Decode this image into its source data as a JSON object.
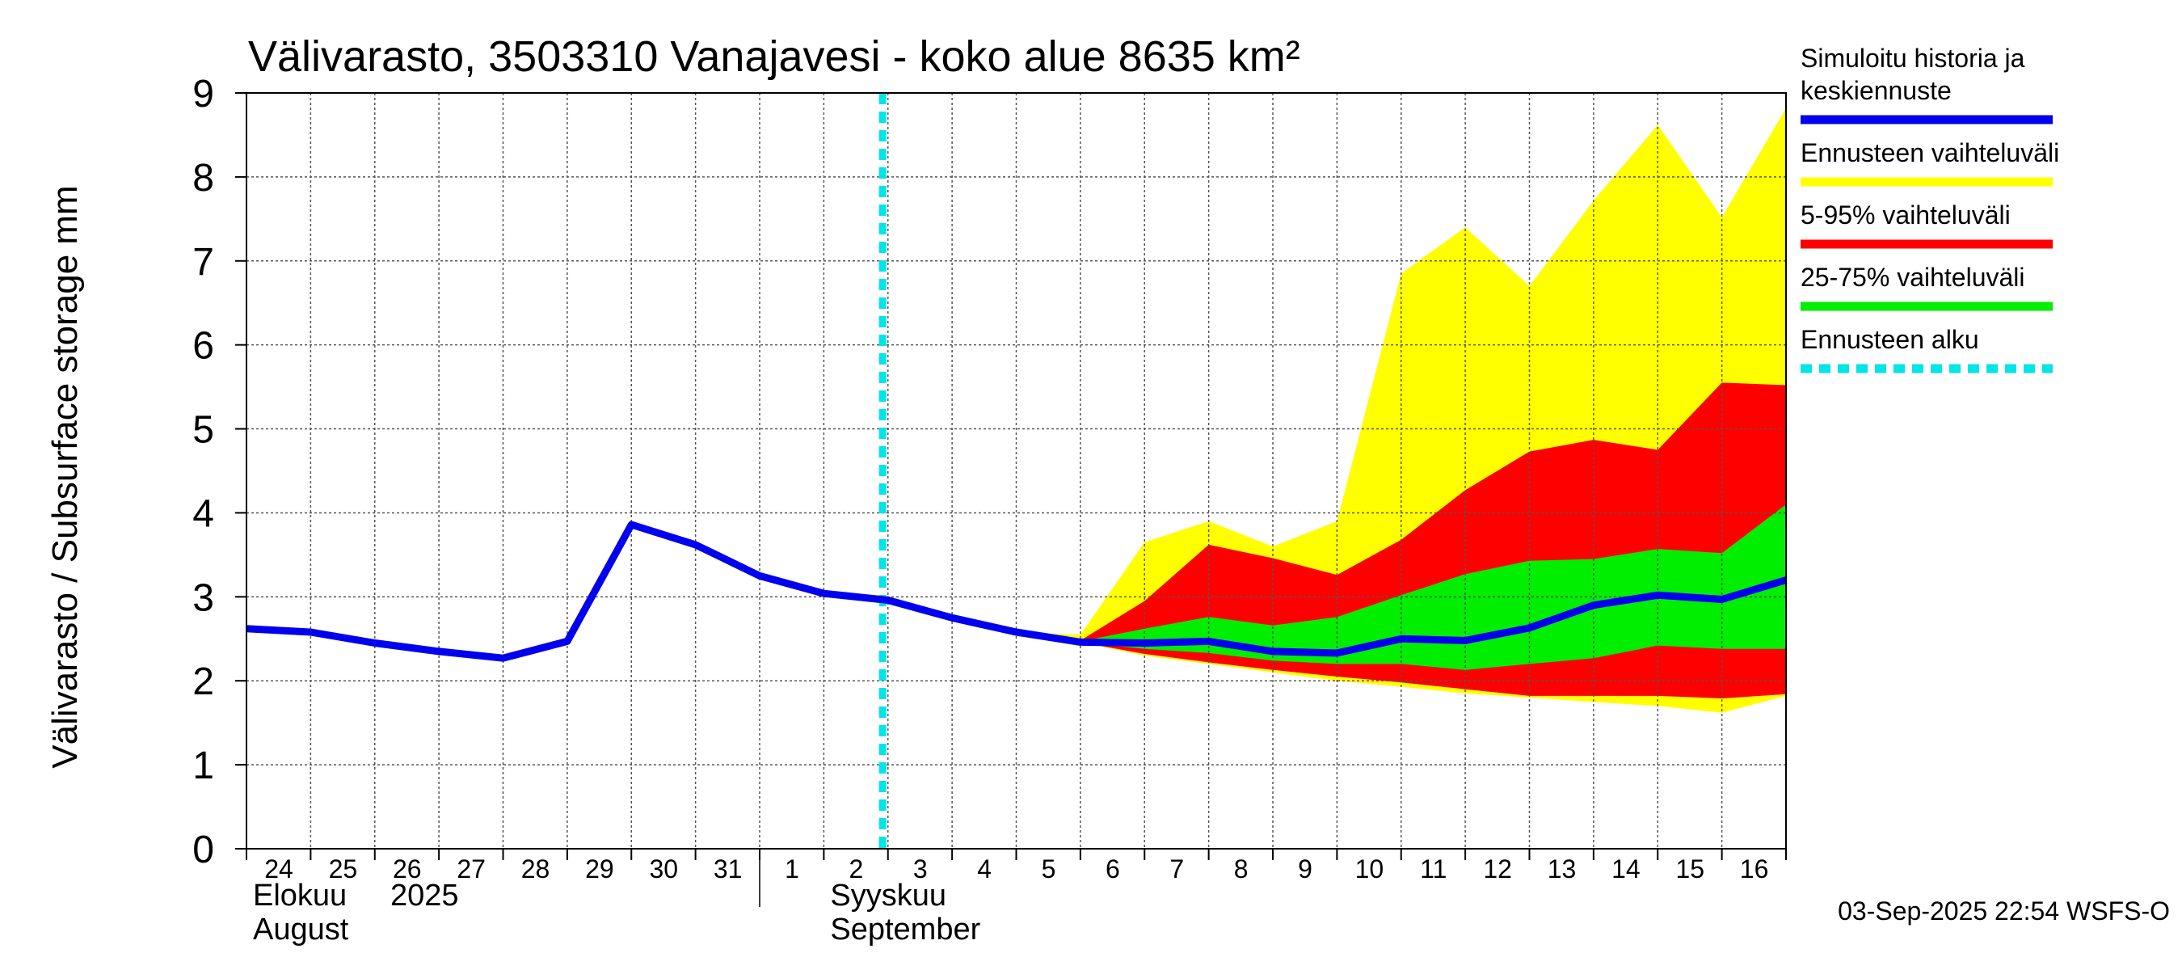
{
  "chart_data": {
    "type": "area",
    "title": "Välivarasto, 3503310 Vanajavesi - koko alue 8635 km²",
    "ylabel": "Välivarasto / Subsurface storage  mm",
    "ylim": [
      0,
      9
    ],
    "yticks": [
      "0",
      "1",
      "2",
      "3",
      "4",
      "5",
      "6",
      "7",
      "8",
      "9"
    ],
    "grid": true,
    "x_start": "2025-08-24",
    "x_end": "2025-09-17",
    "x_ticks": [
      "24",
      "25",
      "26",
      "27",
      "28",
      "29",
      "30",
      "31",
      "1",
      "2",
      "3",
      "4",
      "5",
      "6",
      "7",
      "8",
      "9",
      "10",
      "11",
      "12",
      "13",
      "14",
      "15",
      "16"
    ],
    "month_labels": [
      {
        "fi": "Elokuu",
        "year": "2025",
        "en": "August"
      },
      {
        "fi": "Syyskuu",
        "en": "September"
      }
    ],
    "forecast_start": "2025-09-02 22:00",
    "series": [
      {
        "name": "Simuloitu historia ja keskiennuste",
        "color": "#0000ee",
        "x": [
          "2025-08-24",
          "2025-08-25",
          "2025-08-26",
          "2025-08-27",
          "2025-08-28",
          "2025-08-29",
          "2025-08-30",
          "2025-08-31",
          "2025-09-01",
          "2025-09-02",
          "2025-09-03",
          "2025-09-04",
          "2025-09-05",
          "2025-09-06",
          "2025-09-07",
          "2025-09-08",
          "2025-09-09",
          "2025-09-10",
          "2025-09-11",
          "2025-09-12",
          "2025-09-13",
          "2025-09-14",
          "2025-09-15",
          "2025-09-16",
          "2025-09-17"
        ],
        "values": [
          2.62,
          2.58,
          2.45,
          2.35,
          2.27,
          2.47,
          3.86,
          3.62,
          3.25,
          3.04,
          2.96,
          2.75,
          2.58,
          2.46,
          2.45,
          2.47,
          2.35,
          2.33,
          2.5,
          2.48,
          2.63,
          2.9,
          3.02,
          2.97,
          3.2
        ]
      }
    ],
    "bands": [
      {
        "name": "Ennusteen vaihteluväli",
        "color": "#ffff00",
        "x": [
          "2025-09-05",
          "2025-09-06",
          "2025-09-07",
          "2025-09-08",
          "2025-09-09",
          "2025-09-10",
          "2025-09-11",
          "2025-09-12",
          "2025-09-13",
          "2025-09-14",
          "2025-09-15",
          "2025-09-16",
          "2025-09-17"
        ],
        "low": [
          2.58,
          2.46,
          2.3,
          2.2,
          2.1,
          2.0,
          1.93,
          1.85,
          1.8,
          1.75,
          1.7,
          1.62,
          1.82
        ],
        "high": [
          2.58,
          2.55,
          3.65,
          3.9,
          3.6,
          3.9,
          6.85,
          7.4,
          6.7,
          7.72,
          8.62,
          7.52,
          8.82
        ]
      },
      {
        "name": "5-95% vaihteluväli",
        "color": "#ff0000",
        "x": [
          "2025-09-05",
          "2025-09-06",
          "2025-09-07",
          "2025-09-08",
          "2025-09-09",
          "2025-09-10",
          "2025-09-11",
          "2025-09-12",
          "2025-09-13",
          "2025-09-14",
          "2025-09-15",
          "2025-09-16",
          "2025-09-17"
        ],
        "low": [
          2.58,
          2.46,
          2.32,
          2.22,
          2.13,
          2.05,
          1.98,
          1.9,
          1.82,
          1.82,
          1.82,
          1.79,
          1.84
        ],
        "high": [
          2.58,
          2.48,
          2.95,
          3.62,
          3.46,
          3.26,
          3.68,
          4.27,
          4.73,
          4.87,
          4.75,
          5.55,
          5.52
        ]
      },
      {
        "name": "25-75% vaihteluväli",
        "color": "#00ee00",
        "x": [
          "2025-09-05",
          "2025-09-06",
          "2025-09-07",
          "2025-09-08",
          "2025-09-09",
          "2025-09-10",
          "2025-09-11",
          "2025-09-12",
          "2025-09-13",
          "2025-09-14",
          "2025-09-15",
          "2025-09-16",
          "2025-09-17"
        ],
        "low": [
          2.58,
          2.46,
          2.38,
          2.33,
          2.24,
          2.2,
          2.2,
          2.13,
          2.2,
          2.27,
          2.42,
          2.38,
          2.38
        ],
        "high": [
          2.58,
          2.47,
          2.62,
          2.76,
          2.66,
          2.76,
          3.02,
          3.27,
          3.43,
          3.45,
          3.57,
          3.52,
          4.1
        ]
      }
    ],
    "legend": [
      {
        "label_lines": [
          "Simuloitu historia ja",
          "keskiennuste"
        ],
        "color": "#0000ee",
        "style": "line"
      },
      {
        "label_lines": [
          "Ennusteen vaihteluväli"
        ],
        "color": "#ffff00",
        "style": "line"
      },
      {
        "label_lines": [
          "5-95% vaihteluväli"
        ],
        "color": "#ff0000",
        "style": "line"
      },
      {
        "label_lines": [
          "25-75% vaihteluväli"
        ],
        "color": "#00ee00",
        "style": "line"
      },
      {
        "label_lines": [
          "Ennusteen alku"
        ],
        "color": "#00e5e5",
        "style": "dashed"
      }
    ],
    "legend_position": "right",
    "timestamp": "03-Sep-2025 22:54 WSFS-O"
  }
}
